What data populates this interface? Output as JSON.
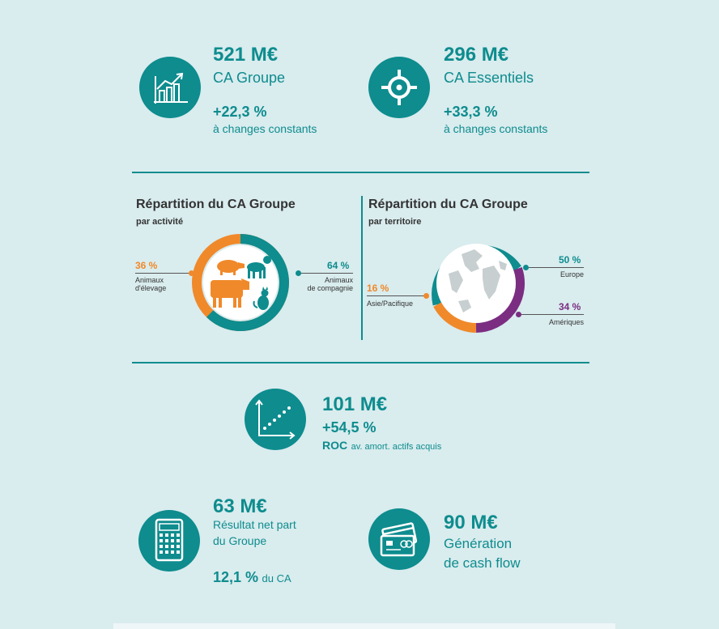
{
  "colors": {
    "teal": "#0e8c8e",
    "orange": "#f0892a",
    "purple": "#7b2d82",
    "grey": "#c7cfd0"
  },
  "kpi1": {
    "value": "521 M€",
    "label": "CA Groupe",
    "growth": "+22,3 %",
    "note": "à changes constants",
    "icon": "growth-chart-icon"
  },
  "kpi2": {
    "value": "296 M€",
    "label": "CA Essentiels",
    "growth": "+33,3 %",
    "note": "à changes constants",
    "icon": "target-icon"
  },
  "activity": {
    "title": "Répartition du CA Groupe",
    "subtitle": "par activité",
    "left": {
      "pct": "36 %",
      "label_l1": "Animaux",
      "label_l2": "d'élevage"
    },
    "right": {
      "pct": "64 %",
      "label_l1": "Animaux",
      "label_l2": "de compagnie"
    }
  },
  "territory": {
    "title": "Répartition du CA Groupe",
    "subtitle": "par territoire",
    "europe": {
      "pct": "50 %",
      "label": "Europe"
    },
    "asia": {
      "pct": "16 %",
      "label": "Asie/Pacifique"
    },
    "americas": {
      "pct": "34 %",
      "label": "Amériques"
    }
  },
  "roc": {
    "value": "101 M€",
    "growth": "+54,5 %",
    "label": "ROC",
    "label_small": "av. amort. actifs acquis",
    "icon": "scatter-trend-icon"
  },
  "net": {
    "value": "63 M€",
    "label_l1": "Résultat net part",
    "label_l2": "du Groupe",
    "pct": "12,1 %",
    "pct_suffix": "du CA",
    "icon": "calculator-icon"
  },
  "cash": {
    "value": "90 M€",
    "label_l1": "Génération",
    "label_l2": "de cash flow",
    "icon": "cards-icon"
  },
  "chart_data": [
    {
      "type": "pie",
      "title": "Répartition du CA Groupe",
      "subtitle": "par activité",
      "categories": [
        "Animaux d'élevage",
        "Animaux de compagnie"
      ],
      "values": [
        36,
        64
      ]
    },
    {
      "type": "pie",
      "title": "Répartition du CA Groupe",
      "subtitle": "par territoire",
      "categories": [
        "Europe",
        "Amériques",
        "Asie/Pacifique"
      ],
      "values": [
        50,
        34,
        16
      ]
    }
  ]
}
